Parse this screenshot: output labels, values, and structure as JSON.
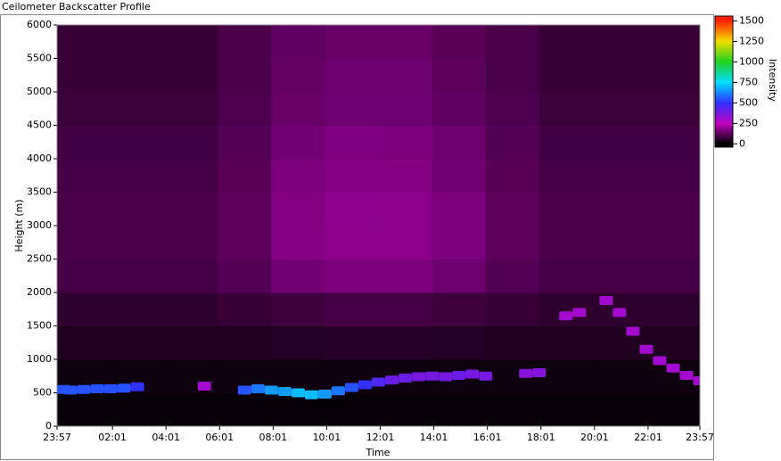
{
  "chart_data": {
    "type": "heatmap",
    "title": "Ceilometer Backscatter Profile",
    "x_label": "Time",
    "y_label": "Height (m)",
    "colorbar_label": "Intensity",
    "xlim": [
      0,
      24
    ],
    "ylim": [
      0,
      6000
    ],
    "xticks": [
      {
        "value": 0,
        "label": "23:57"
      },
      {
        "value": 2.067,
        "label": "02:01"
      },
      {
        "value": 4.067,
        "label": "04:01"
      },
      {
        "value": 6.067,
        "label": "06:01"
      },
      {
        "value": 8.067,
        "label": "08:01"
      },
      {
        "value": 10.067,
        "label": "10:01"
      },
      {
        "value": 12.067,
        "label": "12:01"
      },
      {
        "value": 14.067,
        "label": "14:01"
      },
      {
        "value": 16.067,
        "label": "16:01"
      },
      {
        "value": 18.067,
        "label": "18:01"
      },
      {
        "value": 20.067,
        "label": "20:01"
      },
      {
        "value": 22.067,
        "label": "22:01"
      },
      {
        "value": 24,
        "label": "23:57"
      }
    ],
    "yticks": [
      0,
      500,
      1000,
      1500,
      2000,
      2500,
      3000,
      3500,
      4000,
      4500,
      5000,
      5500,
      6000
    ],
    "clim": [
      -40,
      1560
    ],
    "cticks": [
      0,
      250,
      500,
      750,
      1000,
      1250,
      1500
    ],
    "colorscale": [
      [
        0,
        "#000000"
      ],
      [
        250,
        "#c000c0"
      ],
      [
        500,
        "#3030ff"
      ],
      [
        750,
        "#00e0ff"
      ],
      [
        1000,
        "#20d020"
      ],
      [
        1250,
        "#f0e000"
      ],
      [
        1500,
        "#ff2000"
      ]
    ],
    "x_bins": [
      0,
      2,
      4,
      6,
      8,
      10,
      12,
      14,
      16,
      18,
      20,
      22,
      24
    ],
    "y_bins": [
      0,
      500,
      1000,
      1500,
      2000,
      2500,
      3000,
      3500,
      4000,
      4500,
      5000,
      5500,
      6000
    ],
    "z": [
      [
        10,
        10,
        10,
        10,
        10,
        10,
        10,
        10,
        10,
        10,
        10,
        10
      ],
      [
        20,
        20,
        20,
        20,
        20,
        20,
        20,
        20,
        20,
        20,
        20,
        20
      ],
      [
        40,
        40,
        40,
        40,
        45,
        50,
        50,
        45,
        40,
        40,
        40,
        40
      ],
      [
        60,
        60,
        60,
        70,
        80,
        90,
        90,
        80,
        70,
        60,
        60,
        60
      ],
      [
        90,
        90,
        90,
        110,
        150,
        160,
        160,
        140,
        110,
        90,
        90,
        90
      ],
      [
        95,
        95,
        95,
        120,
        170,
        180,
        180,
        160,
        120,
        95,
        95,
        95
      ],
      [
        95,
        95,
        95,
        120,
        170,
        185,
        180,
        160,
        120,
        95,
        95,
        95
      ],
      [
        90,
        90,
        90,
        115,
        160,
        175,
        170,
        150,
        115,
        90,
        90,
        90
      ],
      [
        85,
        85,
        85,
        110,
        150,
        165,
        160,
        140,
        110,
        85,
        85,
        85
      ],
      [
        75,
        75,
        75,
        100,
        135,
        145,
        145,
        125,
        100,
        75,
        75,
        75
      ],
      [
        70,
        70,
        70,
        95,
        130,
        140,
        140,
        120,
        95,
        70,
        70,
        70
      ],
      [
        70,
        70,
        70,
        95,
        125,
        135,
        135,
        115,
        95,
        70,
        70,
        70
      ]
    ],
    "layer": {
      "x": [
        0,
        0.5,
        1,
        1.5,
        2,
        2.5,
        3,
        3.5,
        4,
        4.5,
        5,
        5.5,
        6,
        6.5,
        7,
        7.5,
        8,
        8.5,
        9,
        9.5,
        10,
        10.5,
        11,
        11.5,
        12,
        12.5,
        13,
        13.5,
        14,
        14.5,
        15,
        15.5,
        16,
        16.5,
        17,
        17.5,
        18,
        18.5,
        19,
        19.5,
        20,
        20.5,
        21,
        21.5,
        22,
        22.5,
        23,
        23.5,
        24
      ],
      "y": [
        550,
        540,
        550,
        560,
        560,
        570,
        590,
        null,
        null,
        null,
        null,
        600,
        null,
        null,
        540,
        560,
        540,
        520,
        500,
        470,
        480,
        530,
        580,
        620,
        660,
        690,
        720,
        740,
        750,
        740,
        760,
        780,
        750,
        null,
        null,
        790,
        800,
        null,
        1650,
        1700,
        null,
        1880,
        1700,
        1420,
        1150,
        980,
        870,
        760,
        680
      ],
      "values": [
        550,
        550,
        550,
        550,
        550,
        550,
        500,
        null,
        null,
        null,
        null,
        300,
        null,
        null,
        550,
        600,
        650,
        650,
        700,
        700,
        650,
        600,
        550,
        500,
        450,
        400,
        400,
        380,
        380,
        380,
        400,
        380,
        380,
        null,
        null,
        350,
        350,
        null,
        300,
        300,
        null,
        300,
        300,
        300,
        300,
        300,
        300,
        300,
        300
      ]
    }
  }
}
